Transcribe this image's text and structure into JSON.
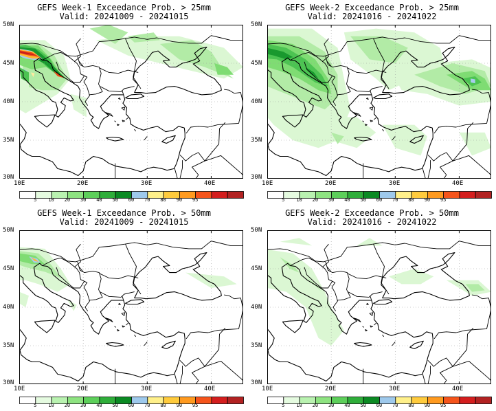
{
  "panels": [
    {
      "id": "p1",
      "title": "GEFS Week-1 Exceedance Prob. > 25mm",
      "valid": "Valid: 20241009 - 20241015"
    },
    {
      "id": "p2",
      "title": "GEFS Week-2 Exceedance Prob. > 25mm",
      "valid": "Valid: 20241016 - 20241022"
    },
    {
      "id": "p3",
      "title": "GEFS Week-1 Exceedance Prob. > 50mm",
      "valid": "Valid: 20241009 - 20241015"
    },
    {
      "id": "p4",
      "title": "GEFS Week-2 Exceedance Prob. > 50mm",
      "valid": "Valid: 20241016 - 20241022"
    }
  ],
  "axes": {
    "lat_labels": [
      "50N",
      "45N",
      "40N",
      "35N",
      "30N"
    ],
    "lon_labels": [
      "10E",
      "20E",
      "30E",
      "40E"
    ]
  },
  "colorbar": {
    "labels": [
      "5",
      "10",
      "20",
      "30",
      "40",
      "50",
      "60",
      "70",
      "80",
      "90",
      "95"
    ],
    "colors": [
      "#ffffff",
      "#e5fbe0",
      "#b9f2b0",
      "#8ee381",
      "#5dcf5a",
      "#2fae3a",
      "#0b8a23",
      "#9ec9ec",
      "#fff08a",
      "#ffcb3d",
      "#ff9a1f",
      "#f5541b",
      "#d41e1e",
      "#b22222"
    ]
  },
  "palette": {
    "p10": "#dbf7d3",
    "p20": "#b2eba6",
    "p30": "#7fdc73",
    "p40": "#4cc352",
    "p50": "#19992e",
    "p60": "#a7cdee",
    "p70": "#ffeaa0",
    "p80": "#ffb833",
    "p90": "#ee4a16",
    "p95": "#c51d1d"
  }
}
